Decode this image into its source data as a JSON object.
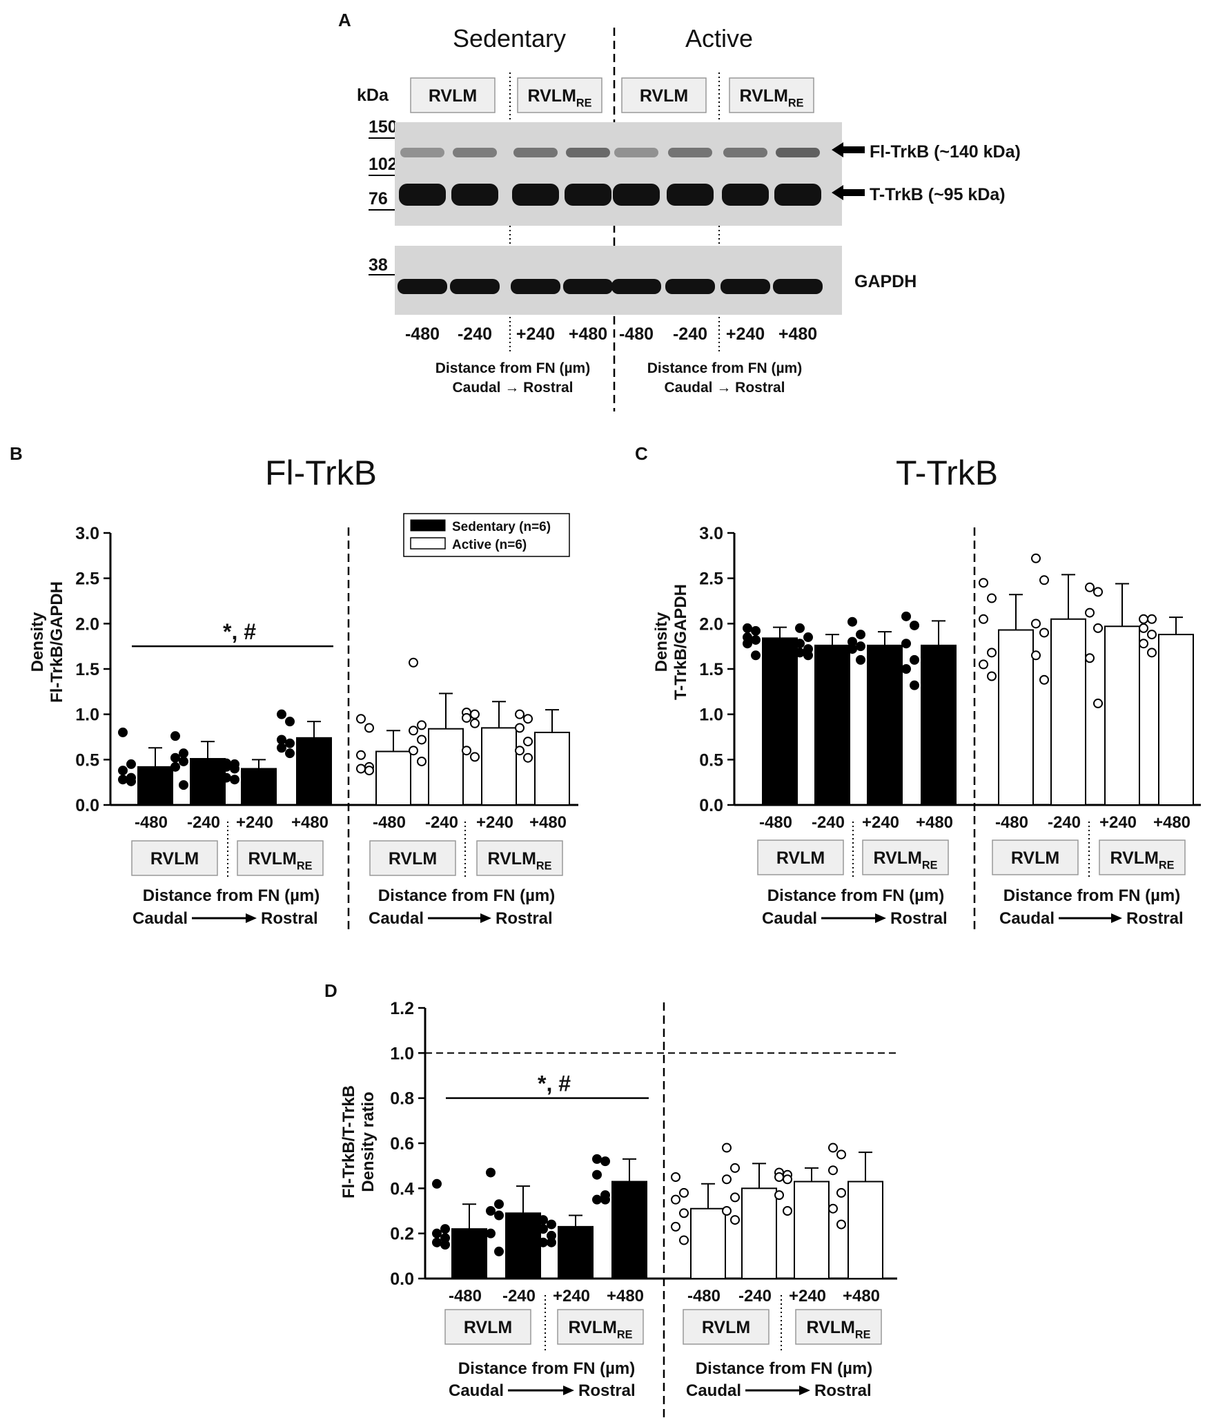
{
  "colors": {
    "sedentary": "#000000",
    "active": "#ffffff",
    "blot_bg": "#d6d6d6",
    "band": "#111111",
    "box_fill": "#efefef",
    "box_stroke": "#999999"
  },
  "panel_a": {
    "letter": "A",
    "groups": [
      "Sedentary",
      "Active"
    ],
    "region_boxes": [
      {
        "main": "RVLM",
        "sub": ""
      },
      {
        "main": "RVLM",
        "sub": "RE"
      },
      {
        "main": "RVLM",
        "sub": ""
      },
      {
        "main": "RVLM",
        "sub": "RE"
      }
    ],
    "kda_label": "kDa",
    "markers": [
      "150",
      "102",
      "76",
      "38"
    ],
    "band_labels": [
      "Fl-TrkB (~140 kDa)",
      "T-TrkB (~95 kDa)",
      "GAPDH"
    ],
    "lanes": [
      "-480",
      "-240",
      "+240",
      "+480",
      "-480",
      "-240",
      "+240",
      "+480"
    ],
    "distance_label": "Distance from FN (µm)",
    "direction_label": "Caudal → Rostral"
  },
  "shared": {
    "x_ticks": [
      "-480",
      "-240",
      "+240",
      "+480",
      "-480",
      "-240",
      "+240",
      "+480"
    ],
    "region_boxes": [
      {
        "main": "RVLM",
        "sub": ""
      },
      {
        "main": "RVLM",
        "sub": "RE"
      },
      {
        "main": "RVLM",
        "sub": ""
      },
      {
        "main": "RVLM",
        "sub": "RE"
      }
    ],
    "distance_label": "Distance from FN (µm)",
    "caudal": "Caudal",
    "rostral": "Rostral"
  },
  "legend": [
    "Sedentary (n=6)",
    "Active (n=6)"
  ],
  "chart_data": [
    {
      "panel": "B",
      "type": "bar",
      "title": "Fl-TrkB",
      "ylabel": [
        "Density",
        "Fl-TrkB/GAPDH"
      ],
      "ylim": [
        0,
        3.0
      ],
      "yticks": [
        "0.0",
        "0.5",
        "1.0",
        "1.5",
        "2.0",
        "2.5",
        "3.0"
      ],
      "categories": [
        "-480",
        "-240",
        "+240",
        "+480"
      ],
      "series": [
        {
          "name": "Sedentary (n=6)",
          "values": [
            0.42,
            0.51,
            0.4,
            0.74
          ],
          "errors": [
            0.21,
            0.19,
            0.1,
            0.18
          ],
          "points": [
            [
              0.8,
              0.45,
              0.38,
              0.3,
              0.28,
              0.26
            ],
            [
              0.76,
              0.57,
              0.52,
              0.48,
              0.42,
              0.22
            ],
            [
              0.46,
              0.45,
              0.42,
              0.4,
              0.3,
              0.28
            ],
            [
              1.0,
              0.92,
              0.72,
              0.68,
              0.63,
              0.57
            ]
          ]
        },
        {
          "name": "Active (n=6)",
          "values": [
            0.59,
            0.84,
            0.85,
            0.8
          ],
          "errors": [
            0.23,
            0.39,
            0.29,
            0.25
          ],
          "points": [
            [
              0.95,
              0.85,
              0.55,
              0.42,
              0.4,
              0.38
            ],
            [
              1.57,
              0.88,
              0.82,
              0.72,
              0.6,
              0.48
            ],
            [
              1.02,
              1.0,
              0.96,
              0.9,
              0.6,
              0.53
            ],
            [
              1.0,
              0.95,
              0.85,
              0.7,
              0.6,
              0.52
            ]
          ]
        }
      ],
      "significance": {
        "label": "*, #",
        "y": 1.75
      }
    },
    {
      "panel": "C",
      "type": "bar",
      "title": "T-TrkB",
      "ylabel": [
        "Density",
        "T-TrkB/GAPDH"
      ],
      "ylim": [
        0,
        3.0
      ],
      "yticks": [
        "0.0",
        "0.5",
        "1.0",
        "1.5",
        "2.0",
        "2.5",
        "3.0"
      ],
      "categories": [
        "-480",
        "-240",
        "+240",
        "+480"
      ],
      "series": [
        {
          "name": "Sedentary (n=6)",
          "values": [
            1.84,
            1.76,
            1.76,
            1.76
          ],
          "errors": [
            0.12,
            0.12,
            0.15,
            0.27
          ],
          "points": [
            [
              1.95,
              1.92,
              1.85,
              1.82,
              1.78,
              1.65
            ],
            [
              1.95,
              1.85,
              1.78,
              1.72,
              1.68,
              1.65
            ],
            [
              2.02,
              1.88,
              1.8,
              1.75,
              1.72,
              1.6
            ],
            [
              2.08,
              1.98,
              1.78,
              1.6,
              1.5,
              1.32
            ]
          ]
        },
        {
          "name": "Active (n=6)",
          "values": [
            1.93,
            2.05,
            1.97,
            1.88
          ],
          "errors": [
            0.39,
            0.49,
            0.47,
            0.19
          ],
          "points": [
            [
              2.45,
              2.28,
              2.05,
              1.68,
              1.55,
              1.42
            ],
            [
              2.72,
              2.48,
              2.0,
              1.9,
              1.65,
              1.38
            ],
            [
              2.4,
              2.35,
              2.12,
              1.95,
              1.62,
              1.12
            ],
            [
              2.05,
              2.05,
              1.95,
              1.88,
              1.78,
              1.68
            ]
          ]
        }
      ]
    },
    {
      "panel": "D",
      "type": "bar",
      "ylabel": [
        "Fl-TrkB/T-TrkB",
        "Density ratio"
      ],
      "ylim": [
        0,
        1.2
      ],
      "yticks": [
        "0.0",
        "0.2",
        "0.4",
        "0.6",
        "0.8",
        "1.0",
        "1.2"
      ],
      "reference_line": 1.0,
      "categories": [
        "-480",
        "-240",
        "+240",
        "+480"
      ],
      "series": [
        {
          "name": "Sedentary (n=6)",
          "values": [
            0.22,
            0.29,
            0.23,
            0.43
          ],
          "errors": [
            0.11,
            0.12,
            0.05,
            0.1
          ],
          "points": [
            [
              0.42,
              0.22,
              0.2,
              0.18,
              0.16,
              0.15
            ],
            [
              0.47,
              0.33,
              0.3,
              0.28,
              0.2,
              0.12
            ],
            [
              0.26,
              0.24,
              0.22,
              0.19,
              0.16,
              0.16
            ],
            [
              0.53,
              0.52,
              0.46,
              0.37,
              0.35,
              0.35
            ]
          ]
        },
        {
          "name": "Active (n=6)",
          "values": [
            0.31,
            0.4,
            0.43,
            0.43
          ],
          "errors": [
            0.11,
            0.11,
            0.06,
            0.13
          ],
          "points": [
            [
              0.45,
              0.38,
              0.35,
              0.29,
              0.23,
              0.17
            ],
            [
              0.58,
              0.49,
              0.44,
              0.36,
              0.3,
              0.26
            ],
            [
              0.47,
              0.46,
              0.45,
              0.44,
              0.37,
              0.3
            ],
            [
              0.58,
              0.55,
              0.48,
              0.38,
              0.31,
              0.24
            ]
          ]
        }
      ],
      "significance": {
        "label": "*, #",
        "y": 0.8
      }
    }
  ],
  "panel_letters": {
    "b": "B",
    "c": "C",
    "d": "D"
  }
}
